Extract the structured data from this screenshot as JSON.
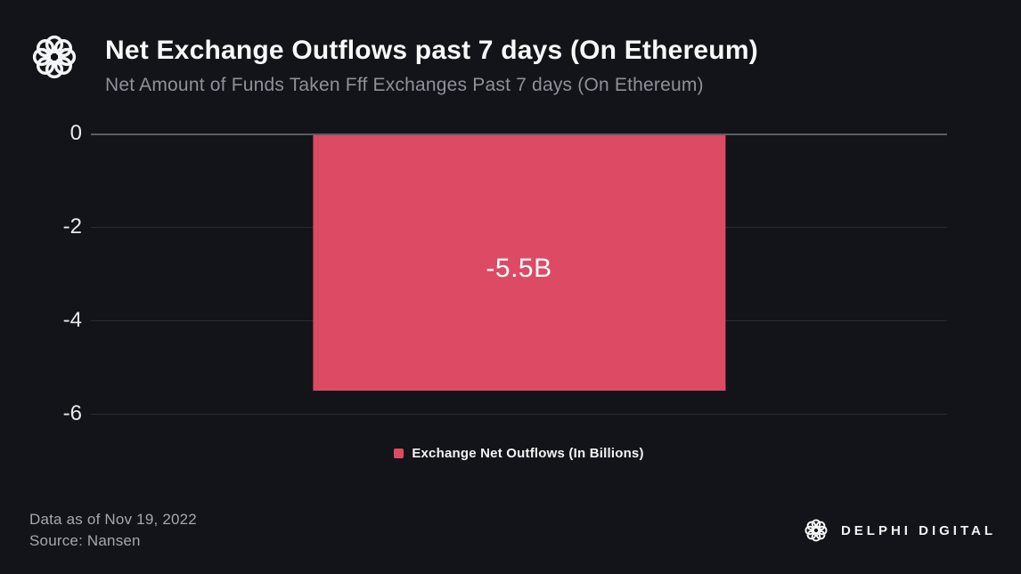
{
  "header": {
    "title": "Net Exchange Outflows past 7 days (On Ethereum)",
    "subtitle": "Net Amount of Funds Taken Fff Exchanges Past 7 days (On Ethereum)",
    "logo_name": "delphi-knot-logo"
  },
  "chart_data": {
    "type": "bar",
    "categories": [
      ""
    ],
    "series": [
      {
        "name": "Exchange Net Outflows (In Billions)",
        "values": [
          -5.5
        ]
      }
    ],
    "bar_label": "-5.5B",
    "bar_color": "#dd4a64",
    "title": "Net Exchange Outflows past 7 days (On Ethereum)",
    "xlabel": "",
    "ylabel": "",
    "ylim": [
      -6,
      0
    ],
    "yticks": [
      0,
      -2,
      -4,
      -6
    ],
    "grid": true,
    "legend_position": "bottom",
    "bar_width_frac": 0.482
  },
  "legend": {
    "label": "Exchange Net Outflows (In Billions)",
    "swatch_color": "#dd4a64"
  },
  "footer": {
    "data_as_of": "Data as of Nov 19, 2022",
    "source": "Source: Nansen",
    "brand": "DELPHI DIGITAL"
  },
  "colors": {
    "background": "#131419",
    "bar": "#dd4a64",
    "gridline": "#2b2d33",
    "zero_line": "#5a5e66",
    "title_text": "#f7f8f9",
    "subtitle_text": "#8d9199",
    "axis_text": "#e8e9eb",
    "footer_text": "#a4a7ae"
  }
}
